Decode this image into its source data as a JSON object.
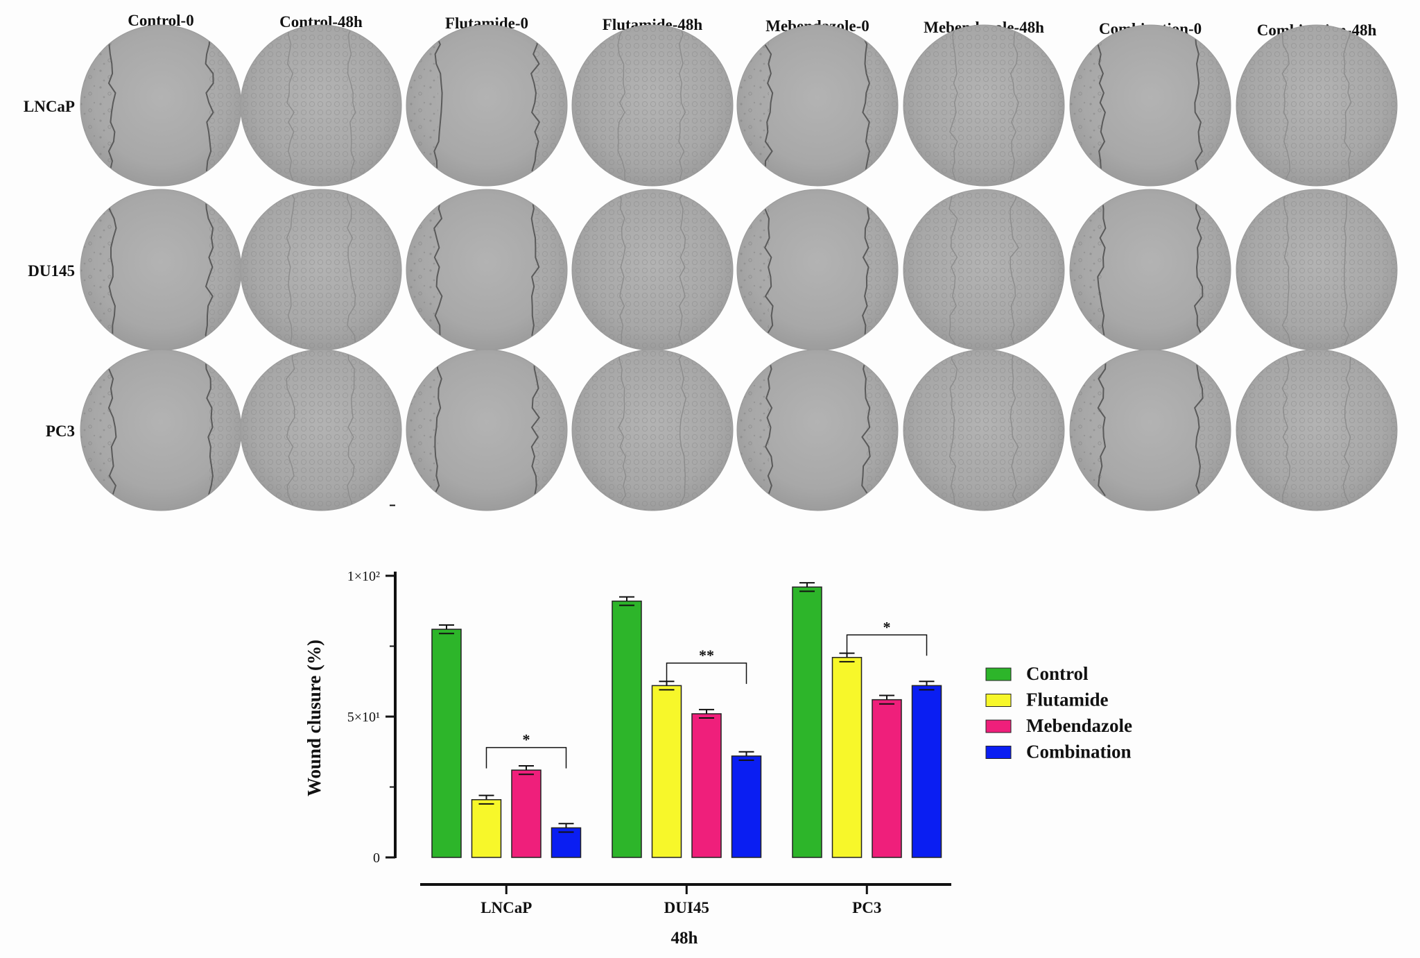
{
  "panel_a": {
    "columns": [
      "Control-0",
      "Control-48h",
      "Flutamide-0",
      "Flutamide-48h",
      "Mebendazole-0",
      "Mebendazole-48h",
      "Combination-0",
      "Combination-48h"
    ],
    "rows": [
      "LNCaP",
      "DU145",
      "PC3"
    ]
  },
  "chart_data": {
    "type": "bar",
    "categories": [
      "LNCaP",
      "DUI45",
      "PC3"
    ],
    "xlabel": "48h",
    "ylabel": "Wound clusure (%)",
    "ylim": [
      0,
      100
    ],
    "yticks": [
      {
        "value": 0,
        "label": "0"
      },
      {
        "value": 50,
        "label": "5×10¹"
      },
      {
        "value": 100,
        "label": "1×10²"
      }
    ],
    "legend_position": "right",
    "series": [
      {
        "name": "Control",
        "color": "#2db52a",
        "values": [
          81,
          91,
          96
        ],
        "errors": [
          1.5,
          1.5,
          1.5
        ]
      },
      {
        "name": "Flutamide",
        "color": "#f7f72a",
        "values": [
          20.5,
          61,
          71
        ],
        "errors": [
          1.5,
          1.5,
          1.5
        ]
      },
      {
        "name": "Mebendazole",
        "color": "#ef1f7b",
        "values": [
          31,
          51,
          56
        ],
        "errors": [
          1.5,
          1.5,
          1.5
        ]
      },
      {
        "name": "Combination",
        "color": "#0a1ef2",
        "values": [
          10.5,
          36,
          61
        ],
        "errors": [
          1.5,
          1.5,
          1.5
        ]
      }
    ],
    "significance": [
      {
        "category": "LNCaP",
        "from": "Flutamide",
        "to": "Combination",
        "label": "*"
      },
      {
        "category": "DUI45",
        "from": "Flutamide",
        "to": "Combination",
        "label": "**"
      },
      {
        "category": "PC3",
        "from": "Flutamide",
        "to": "Combination",
        "label": "*"
      }
    ]
  }
}
